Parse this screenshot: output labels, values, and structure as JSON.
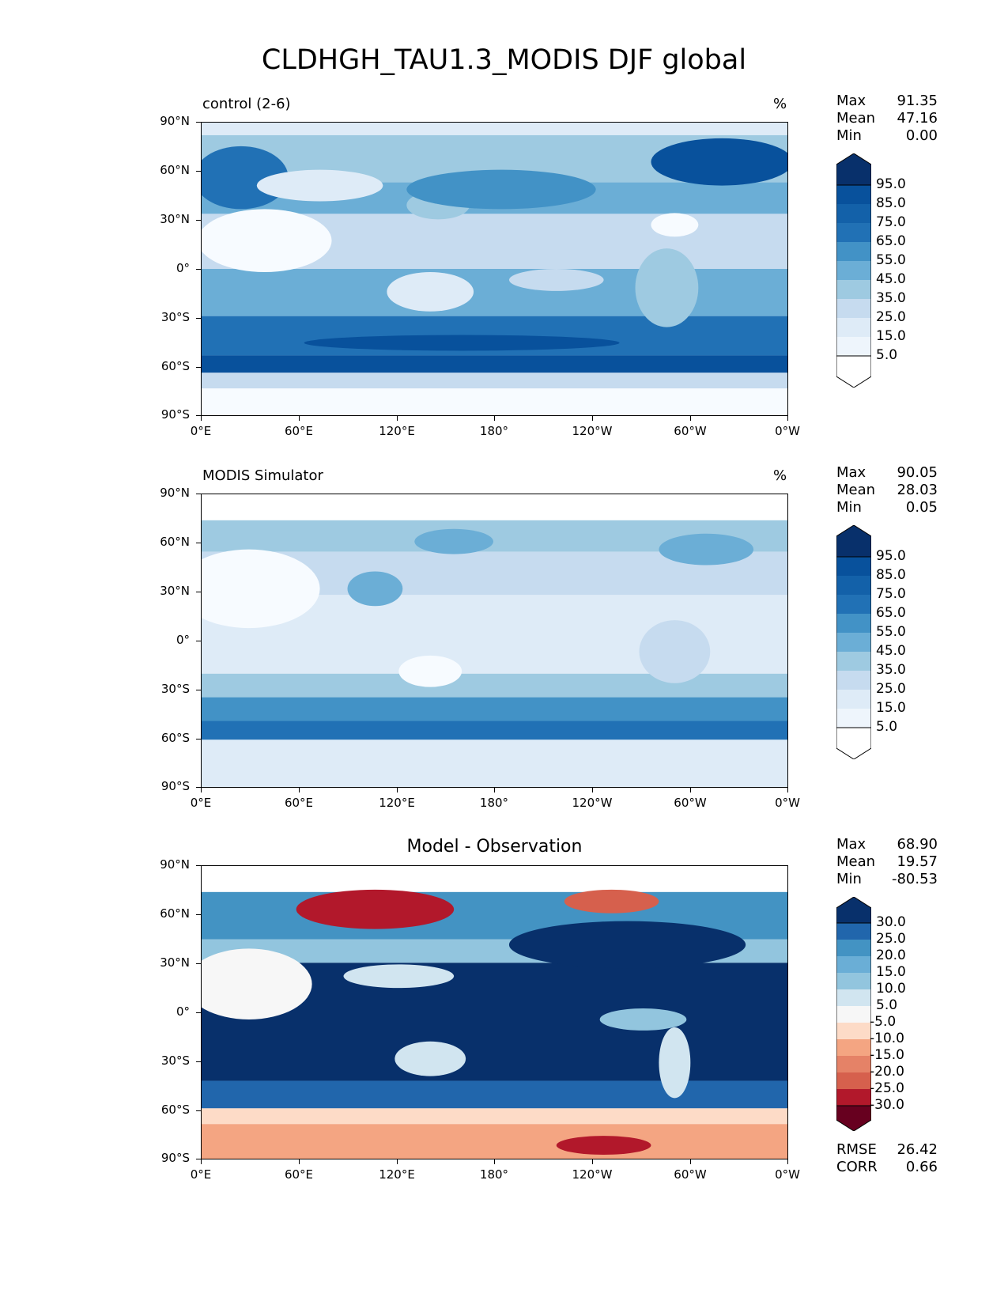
{
  "figure_title": "CLDHGH_TAU1.3_MODIS DJF global",
  "panels": [
    {
      "id": "control",
      "title_left": "control (2-6)",
      "title_right": "%",
      "stats": {
        "max_label": "Max",
        "max": "91.35",
        "mean_label": "Mean",
        "mean": "47.16",
        "min_label": "Min",
        "min": "0.00"
      },
      "colorbar_labels": [
        "95.0",
        "85.0",
        "75.0",
        "65.0",
        "55.0",
        "45.0",
        "35.0",
        "25.0",
        "15.0",
        "5.0"
      ]
    },
    {
      "id": "modis",
      "title_left": "MODIS Simulator",
      "title_right": "%",
      "stats": {
        "max_label": "Max",
        "max": "90.05",
        "mean_label": "Mean",
        "mean": "28.03",
        "min_label": "Min",
        "min": "0.05"
      },
      "colorbar_labels": [
        "95.0",
        "85.0",
        "75.0",
        "65.0",
        "55.0",
        "45.0",
        "35.0",
        "25.0",
        "15.0",
        "5.0"
      ]
    },
    {
      "id": "diff",
      "title_center": "Model - Observation",
      "stats": {
        "max_label": "Max",
        "max": "68.90",
        "mean_label": "Mean",
        "mean": "19.57",
        "min_label": "Min",
        "min": "-80.53"
      },
      "colorbar_labels": [
        "30.0",
        "25.0",
        "20.0",
        "15.0",
        "10.0",
        "5.0",
        "-5.0",
        "-10.0",
        "-15.0",
        "-20.0",
        "-25.0",
        "-30.0"
      ],
      "rmse_label": "RMSE",
      "rmse": "26.42",
      "corr_label": "CORR",
      "corr": "0.66"
    }
  ],
  "axes": {
    "x_tick_labels": [
      "0°E",
      "60°E",
      "120°E",
      "180°",
      "120°W",
      "60°W",
      "0°W"
    ],
    "y_tick_labels": [
      "90°N",
      "60°N",
      "30°N",
      "0°",
      "30°S",
      "60°S",
      "90°S"
    ]
  },
  "colors": {
    "blues": [
      "#f7fbff",
      "#deebf7",
      "#c6dbef",
      "#9ecae1",
      "#6baed6",
      "#4292c6",
      "#2171b5",
      "#1361a9",
      "#08519c",
      "#08306b"
    ],
    "diverging": [
      "#67001f",
      "#b2182b",
      "#d6604d",
      "#e58267",
      "#f4a582",
      "#fddbc7",
      "#f7f7f7",
      "#d1e5f0",
      "#92c5de",
      "#6aaed6",
      "#4393c3",
      "#2166ac",
      "#08306b"
    ]
  }
}
